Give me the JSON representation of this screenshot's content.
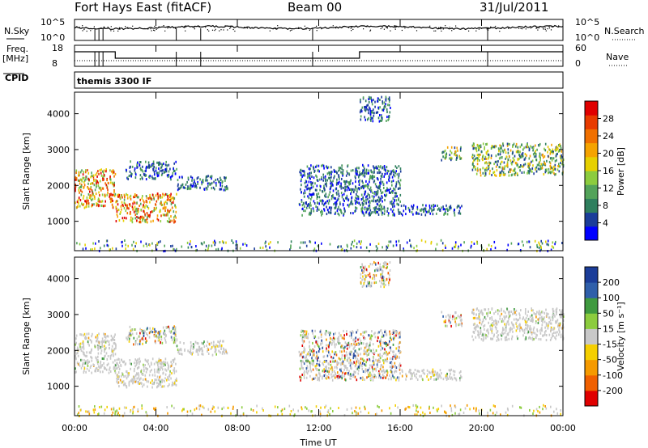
{
  "header": {
    "title": "Fort Hays East (fitACF)",
    "beam": "Beam 00",
    "date": "31/Jul/2011"
  },
  "top_panels": {
    "nsky_label": "N.Sky",
    "nsky_ticks": [
      "10^5",
      "10^0"
    ],
    "nsearch_label": "N.Search",
    "nsearch_ticks": [
      "10^5",
      "10^0"
    ],
    "freq_label": "Freq.",
    "freq_unit": "[MHz]",
    "freq_ticks": [
      "18",
      "8"
    ],
    "nave_label": "Nave",
    "nave_ticks": [
      "60",
      "0"
    ],
    "cpid_label": "CPID",
    "cpid_text": "themis 3300 IF"
  },
  "chart_data": [
    {
      "type": "heatmap",
      "name": "power",
      "ylabel": "Slant Range [km]",
      "yticks": [
        "4000",
        "3000",
        "2000",
        "1000"
      ],
      "ylim": [
        180,
        4600
      ],
      "xlim": [
        0,
        24
      ],
      "colorbar": {
        "label": "Power [dB]",
        "ticks": [
          "28",
          "24",
          "20",
          "16",
          "12",
          "8",
          "4"
        ],
        "colors": [
          "#0000ff",
          "#1b3d99",
          "#2f7f5e",
          "#53a35a",
          "#8ccc3e",
          "#e6d000",
          "#f5a300",
          "#f07000",
          "#e83b00",
          "#e00000"
        ]
      },
      "echo_regions": [
        {
          "t0": 0.0,
          "t1": 2.0,
          "r0": 1400,
          "r1": 2500,
          "level": "high"
        },
        {
          "t0": 2.0,
          "t1": 5.0,
          "r0": 1000,
          "r1": 1800,
          "level": "high"
        },
        {
          "t0": 2.5,
          "t1": 5.0,
          "r0": 2200,
          "r1": 2700,
          "level": "low"
        },
        {
          "t0": 5.0,
          "t1": 7.5,
          "r0": 1900,
          "r1": 2300,
          "level": "low"
        },
        {
          "t0": 11.0,
          "t1": 16.0,
          "r0": 1200,
          "r1": 2600,
          "level": "low"
        },
        {
          "t0": 14.0,
          "t1": 15.5,
          "r0": 3800,
          "r1": 4500,
          "level": "low"
        },
        {
          "t0": 16.0,
          "t1": 19.0,
          "r0": 1200,
          "r1": 1500,
          "level": "low"
        },
        {
          "t0": 18.0,
          "t1": 19.0,
          "r0": 2700,
          "r1": 3100,
          "level": "mid"
        },
        {
          "t0": 19.5,
          "t1": 24.0,
          "r0": 2300,
          "r1": 3200,
          "level": "mid"
        },
        {
          "t0": 0.0,
          "t1": 24.0,
          "r0": 200,
          "r1": 500,
          "level": "ground"
        }
      ]
    },
    {
      "type": "heatmap",
      "name": "velocity",
      "ylabel": "Slant Range [km]",
      "yticks": [
        "4000",
        "3000",
        "2000",
        "1000"
      ],
      "ylim": [
        180,
        4600
      ],
      "xlim": [
        0,
        24
      ],
      "colorbar": {
        "label": "Velocity [m s⁻¹]",
        "ticks": [
          "200",
          "100",
          "50",
          "15",
          "-15",
          "-50",
          "-100",
          "-200"
        ],
        "colors": [
          "#e00000",
          "#f06000",
          "#f59a00",
          "#f5cf00",
          "#c8c8c8",
          "#8ccc3e",
          "#3f9a3f",
          "#2f5faa",
          "#1b3d99"
        ]
      },
      "echo_regions": [
        {
          "t0": 0.0,
          "t1": 2.0,
          "r0": 1400,
          "r1": 2500,
          "level": "low-vel"
        },
        {
          "t0": 2.0,
          "t1": 5.0,
          "r0": 1000,
          "r1": 1800,
          "level": "low-vel"
        },
        {
          "t0": 2.5,
          "t1": 5.0,
          "r0": 2200,
          "r1": 2700,
          "level": "mixed"
        },
        {
          "t0": 5.0,
          "t1": 7.5,
          "r0": 1900,
          "r1": 2300,
          "level": "low-vel"
        },
        {
          "t0": 11.0,
          "t1": 16.0,
          "r0": 1200,
          "r1": 2600,
          "level": "mixed"
        },
        {
          "t0": 14.0,
          "t1": 15.5,
          "r0": 3800,
          "r1": 4500,
          "level": "mixed"
        },
        {
          "t0": 16.0,
          "t1": 19.0,
          "r0": 1200,
          "r1": 1500,
          "level": "low-vel"
        },
        {
          "t0": 18.0,
          "t1": 19.0,
          "r0": 2700,
          "r1": 3100,
          "level": "mixed"
        },
        {
          "t0": 19.5,
          "t1": 24.0,
          "r0": 2300,
          "r1": 3200,
          "level": "low-vel"
        },
        {
          "t0": 0.0,
          "t1": 24.0,
          "r0": 200,
          "r1": 500,
          "level": "ground"
        }
      ]
    }
  ],
  "x_axis": {
    "label": "Time UT",
    "ticks": [
      "00:00",
      "04:00",
      "08:00",
      "12:00",
      "16:00",
      "20:00",
      "00:00"
    ]
  }
}
